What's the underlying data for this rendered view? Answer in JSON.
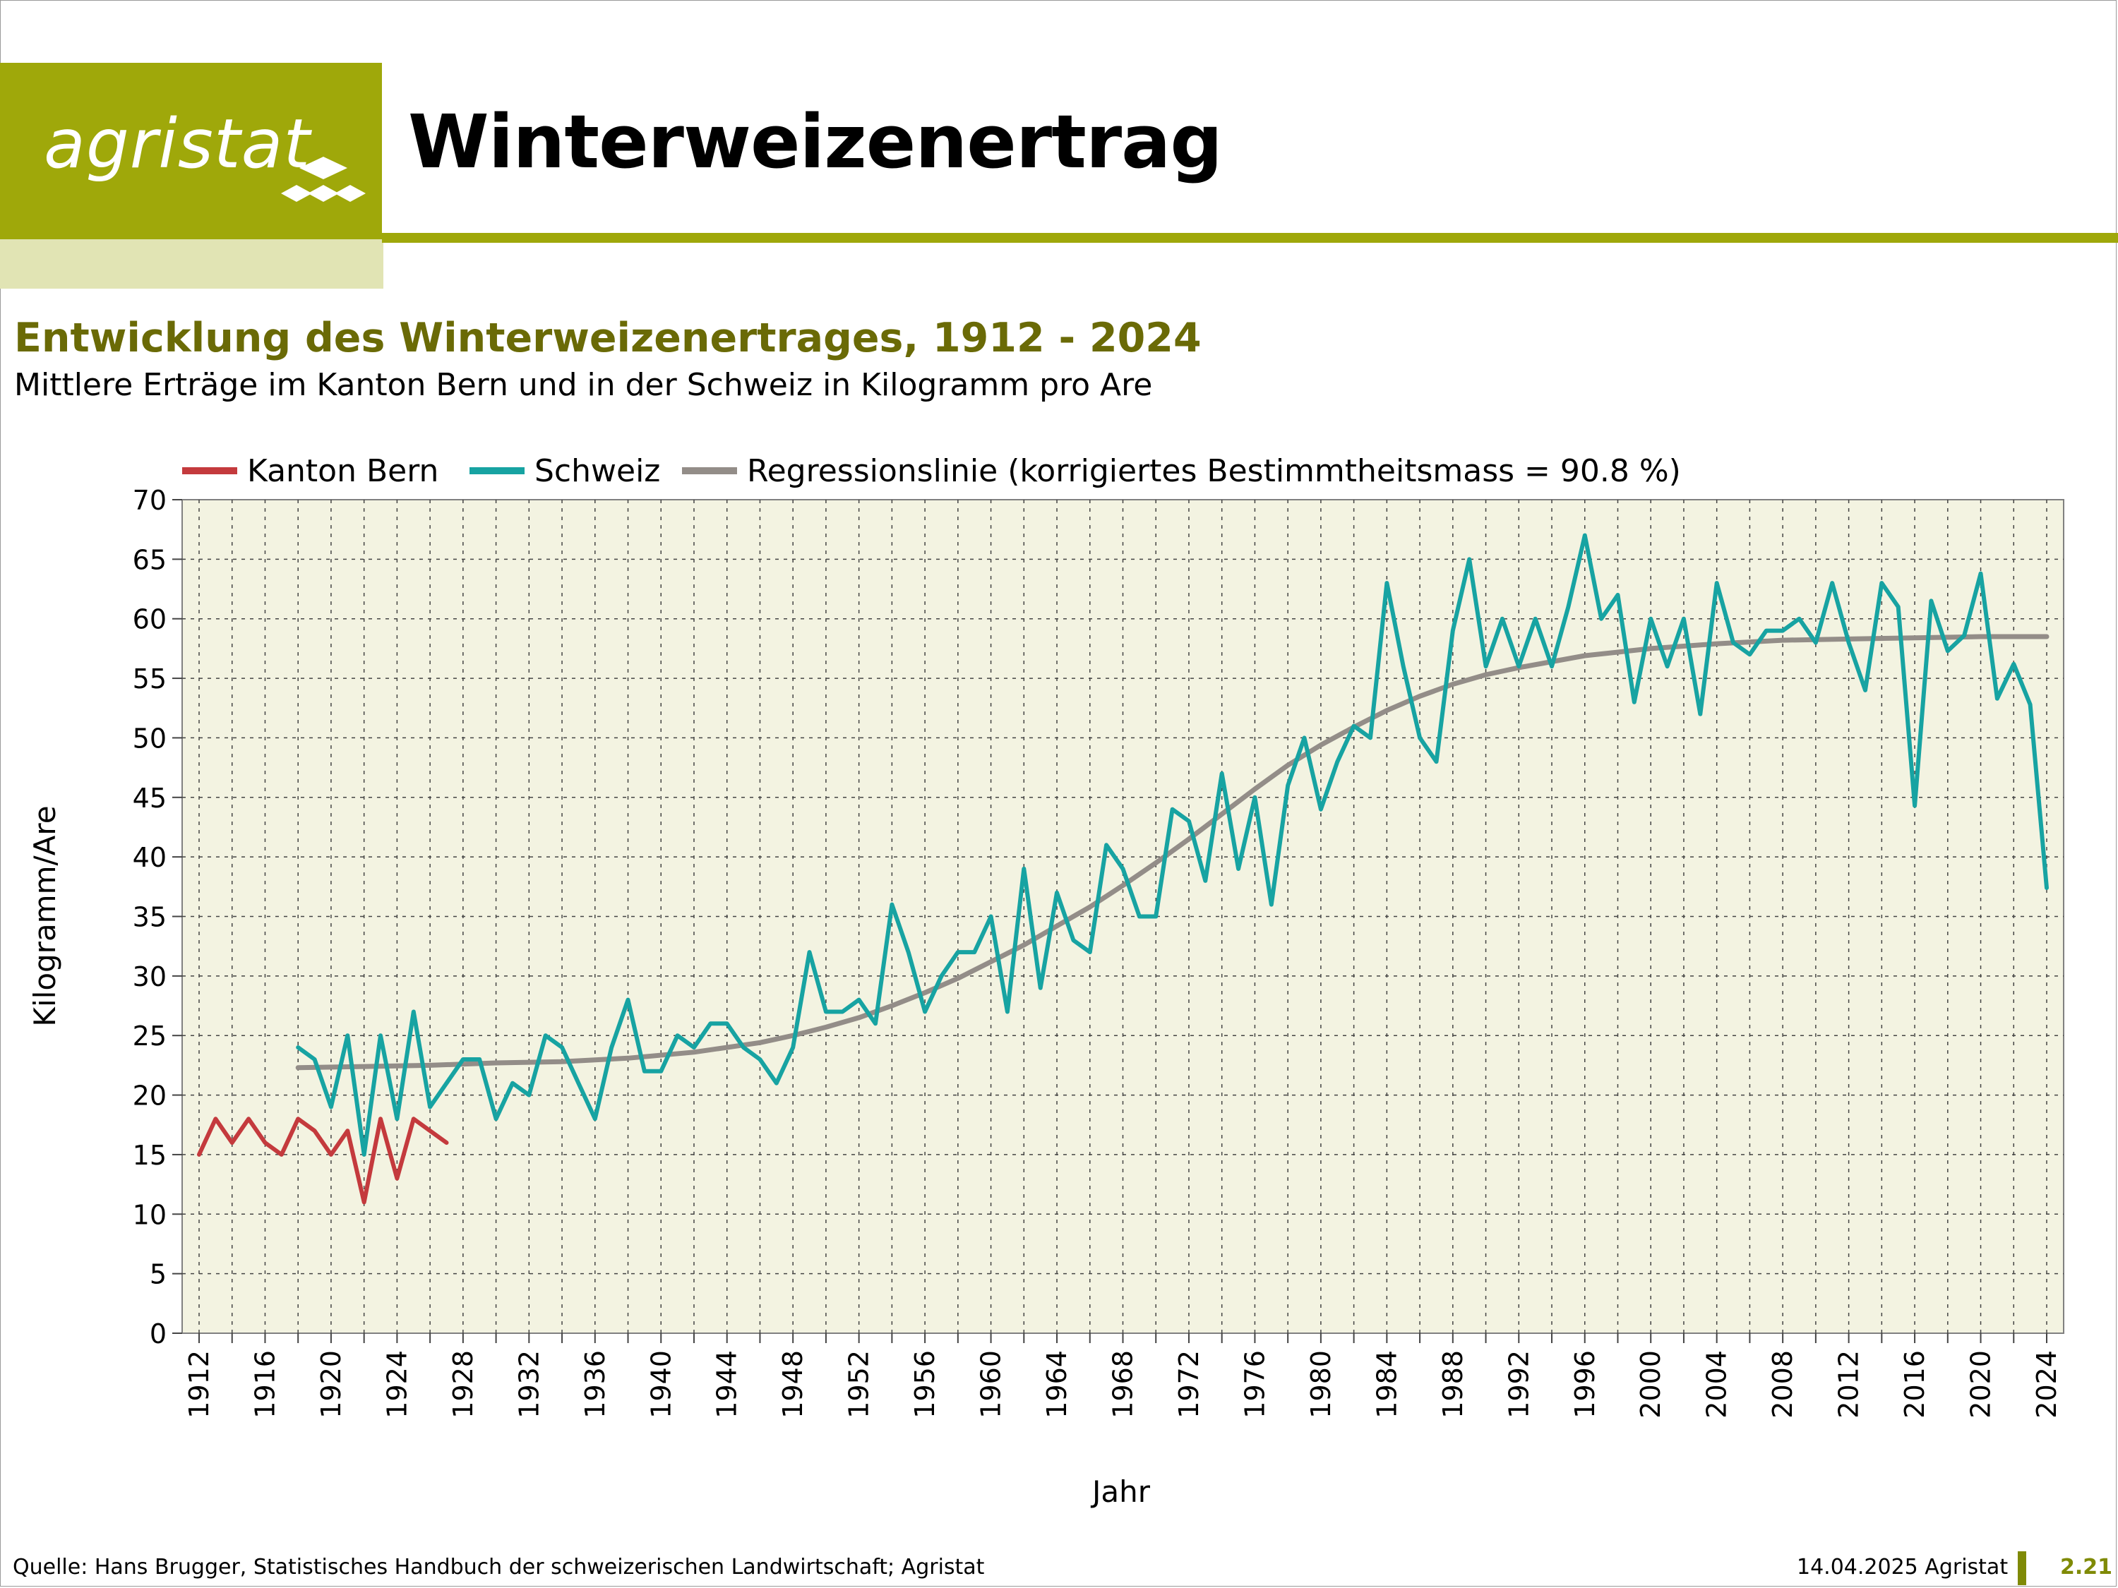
{
  "header": {
    "logo_text": "agristat",
    "title": "Winterweizenertrag"
  },
  "colors": {
    "brand_green": "#9fa80a",
    "brand_light": "#e1e4b4",
    "title_olive": "#6a6a06",
    "plot_bg": "#f3f3e1",
    "bern": "#c43a3d",
    "schweiz": "#17a3a2",
    "regression": "#938d88"
  },
  "footer": {
    "source": "Quelle: Hans Brugger, Statistisches Handbuch der schweizerischen Landwirtschaft; Agristat",
    "date": "14.04.2025 Agristat",
    "page": "2.21"
  },
  "chart_data": {
    "type": "line",
    "title": "Entwicklung des Winterweizenertrages, 1912 - 2024",
    "subtitle": "Mittlere Erträge im Kanton Bern und in der Schweiz in Kilogramm pro Are",
    "xlabel": "Jahr",
    "ylabel": "Kilogramm/Are",
    "xlim": [
      1912,
      2024
    ],
    "ylim": [
      0,
      70
    ],
    "x_ticks": [
      1912,
      1916,
      1920,
      1924,
      1928,
      1932,
      1936,
      1940,
      1944,
      1948,
      1952,
      1956,
      1960,
      1964,
      1968,
      1972,
      1976,
      1980,
      1984,
      1988,
      1992,
      1996,
      2000,
      2004,
      2008,
      2012,
      2016,
      2020,
      2024
    ],
    "y_ticks": [
      0,
      5,
      10,
      15,
      20,
      25,
      30,
      35,
      40,
      45,
      50,
      55,
      60,
      65,
      70
    ],
    "grid": true,
    "legend": "top",
    "series": [
      {
        "name": "Kanton Bern",
        "color": "#c43a3d",
        "x": [
          1912,
          1913,
          1914,
          1915,
          1916,
          1917,
          1918,
          1919,
          1920,
          1921,
          1922,
          1923,
          1924,
          1925,
          1926,
          1927
        ],
        "values": [
          15,
          18,
          16,
          18,
          16,
          15,
          18,
          17,
          15,
          17,
          11,
          18,
          13,
          18,
          17,
          16
        ]
      },
      {
        "name": "Schweiz",
        "color": "#17a3a2",
        "x": [
          1918,
          1919,
          1920,
          1921,
          1922,
          1923,
          1924,
          1925,
          1926,
          1927,
          1928,
          1929,
          1930,
          1931,
          1932,
          1933,
          1934,
          1935,
          1936,
          1937,
          1938,
          1939,
          1940,
          1941,
          1942,
          1943,
          1944,
          1945,
          1946,
          1947,
          1948,
          1949,
          1950,
          1951,
          1952,
          1953,
          1954,
          1955,
          1956,
          1957,
          1958,
          1959,
          1960,
          1961,
          1962,
          1963,
          1964,
          1965,
          1966,
          1967,
          1968,
          1969,
          1970,
          1971,
          1972,
          1973,
          1974,
          1975,
          1976,
          1977,
          1978,
          1979,
          1980,
          1981,
          1982,
          1983,
          1984,
          1985,
          1986,
          1987,
          1988,
          1989,
          1990,
          1991,
          1992,
          1993,
          1994,
          1995,
          1996,
          1997,
          1998,
          1999,
          2000,
          2001,
          2002,
          2003,
          2004,
          2005,
          2006,
          2007,
          2008,
          2009,
          2010,
          2011,
          2012,
          2013,
          2014,
          2015,
          2016,
          2017,
          2018,
          2019,
          2020,
          2021,
          2022,
          2023,
          2024
        ],
        "values": [
          24,
          23,
          19,
          25,
          15,
          25,
          18,
          27,
          19,
          21,
          23,
          23,
          18,
          21,
          20,
          25,
          24,
          21,
          18,
          24,
          28,
          22,
          22,
          25,
          24,
          26,
          26,
          24,
          23,
          21,
          24,
          32,
          27,
          27,
          28,
          26,
          36,
          32,
          27,
          30,
          32,
          32,
          35,
          27,
          39,
          29,
          37,
          33,
          32,
          41,
          39,
          35,
          35,
          44,
          43,
          38,
          47,
          39,
          45,
          36,
          46,
          50,
          44,
          48,
          51,
          50,
          63,
          56,
          50,
          48,
          59,
          65,
          56,
          60,
          56,
          60,
          56,
          61,
          67,
          60,
          62,
          53,
          60,
          56,
          60,
          52,
          63,
          58,
          57,
          59,
          59,
          60,
          58,
          63,
          58,
          54,
          63,
          61,
          44.3,
          61.5,
          57.3,
          58.6,
          63.8,
          53.3,
          56.2,
          52.8,
          37.4
        ]
      },
      {
        "name": "Regressionslinie (korrigiertes Bestimmtheitsmass = 90.8 %)",
        "color": "#938d88",
        "x": [
          1918,
          1922,
          1926,
          1930,
          1934,
          1938,
          1942,
          1946,
          1948,
          1950,
          1952,
          1954,
          1956,
          1958,
          1960,
          1962,
          1964,
          1966,
          1968,
          1970,
          1972,
          1974,
          1976,
          1978,
          1980,
          1982,
          1984,
          1986,
          1988,
          1990,
          1992,
          1994,
          1996,
          1998,
          2000,
          2004,
          2008,
          2012,
          2016,
          2020,
          2024
        ],
        "values": [
          22.3,
          22.4,
          22.5,
          22.7,
          22.8,
          23.1,
          23.6,
          24.4,
          25.0,
          25.7,
          26.5,
          27.5,
          28.6,
          29.8,
          31.2,
          32.6,
          34.2,
          35.8,
          37.6,
          39.5,
          41.5,
          43.6,
          45.7,
          47.7,
          49.4,
          50.9,
          52.3,
          53.5,
          54.5,
          55.3,
          55.9,
          56.4,
          56.9,
          57.2,
          57.5,
          57.9,
          58.2,
          58.3,
          58.4,
          58.5,
          58.5
        ]
      }
    ]
  }
}
